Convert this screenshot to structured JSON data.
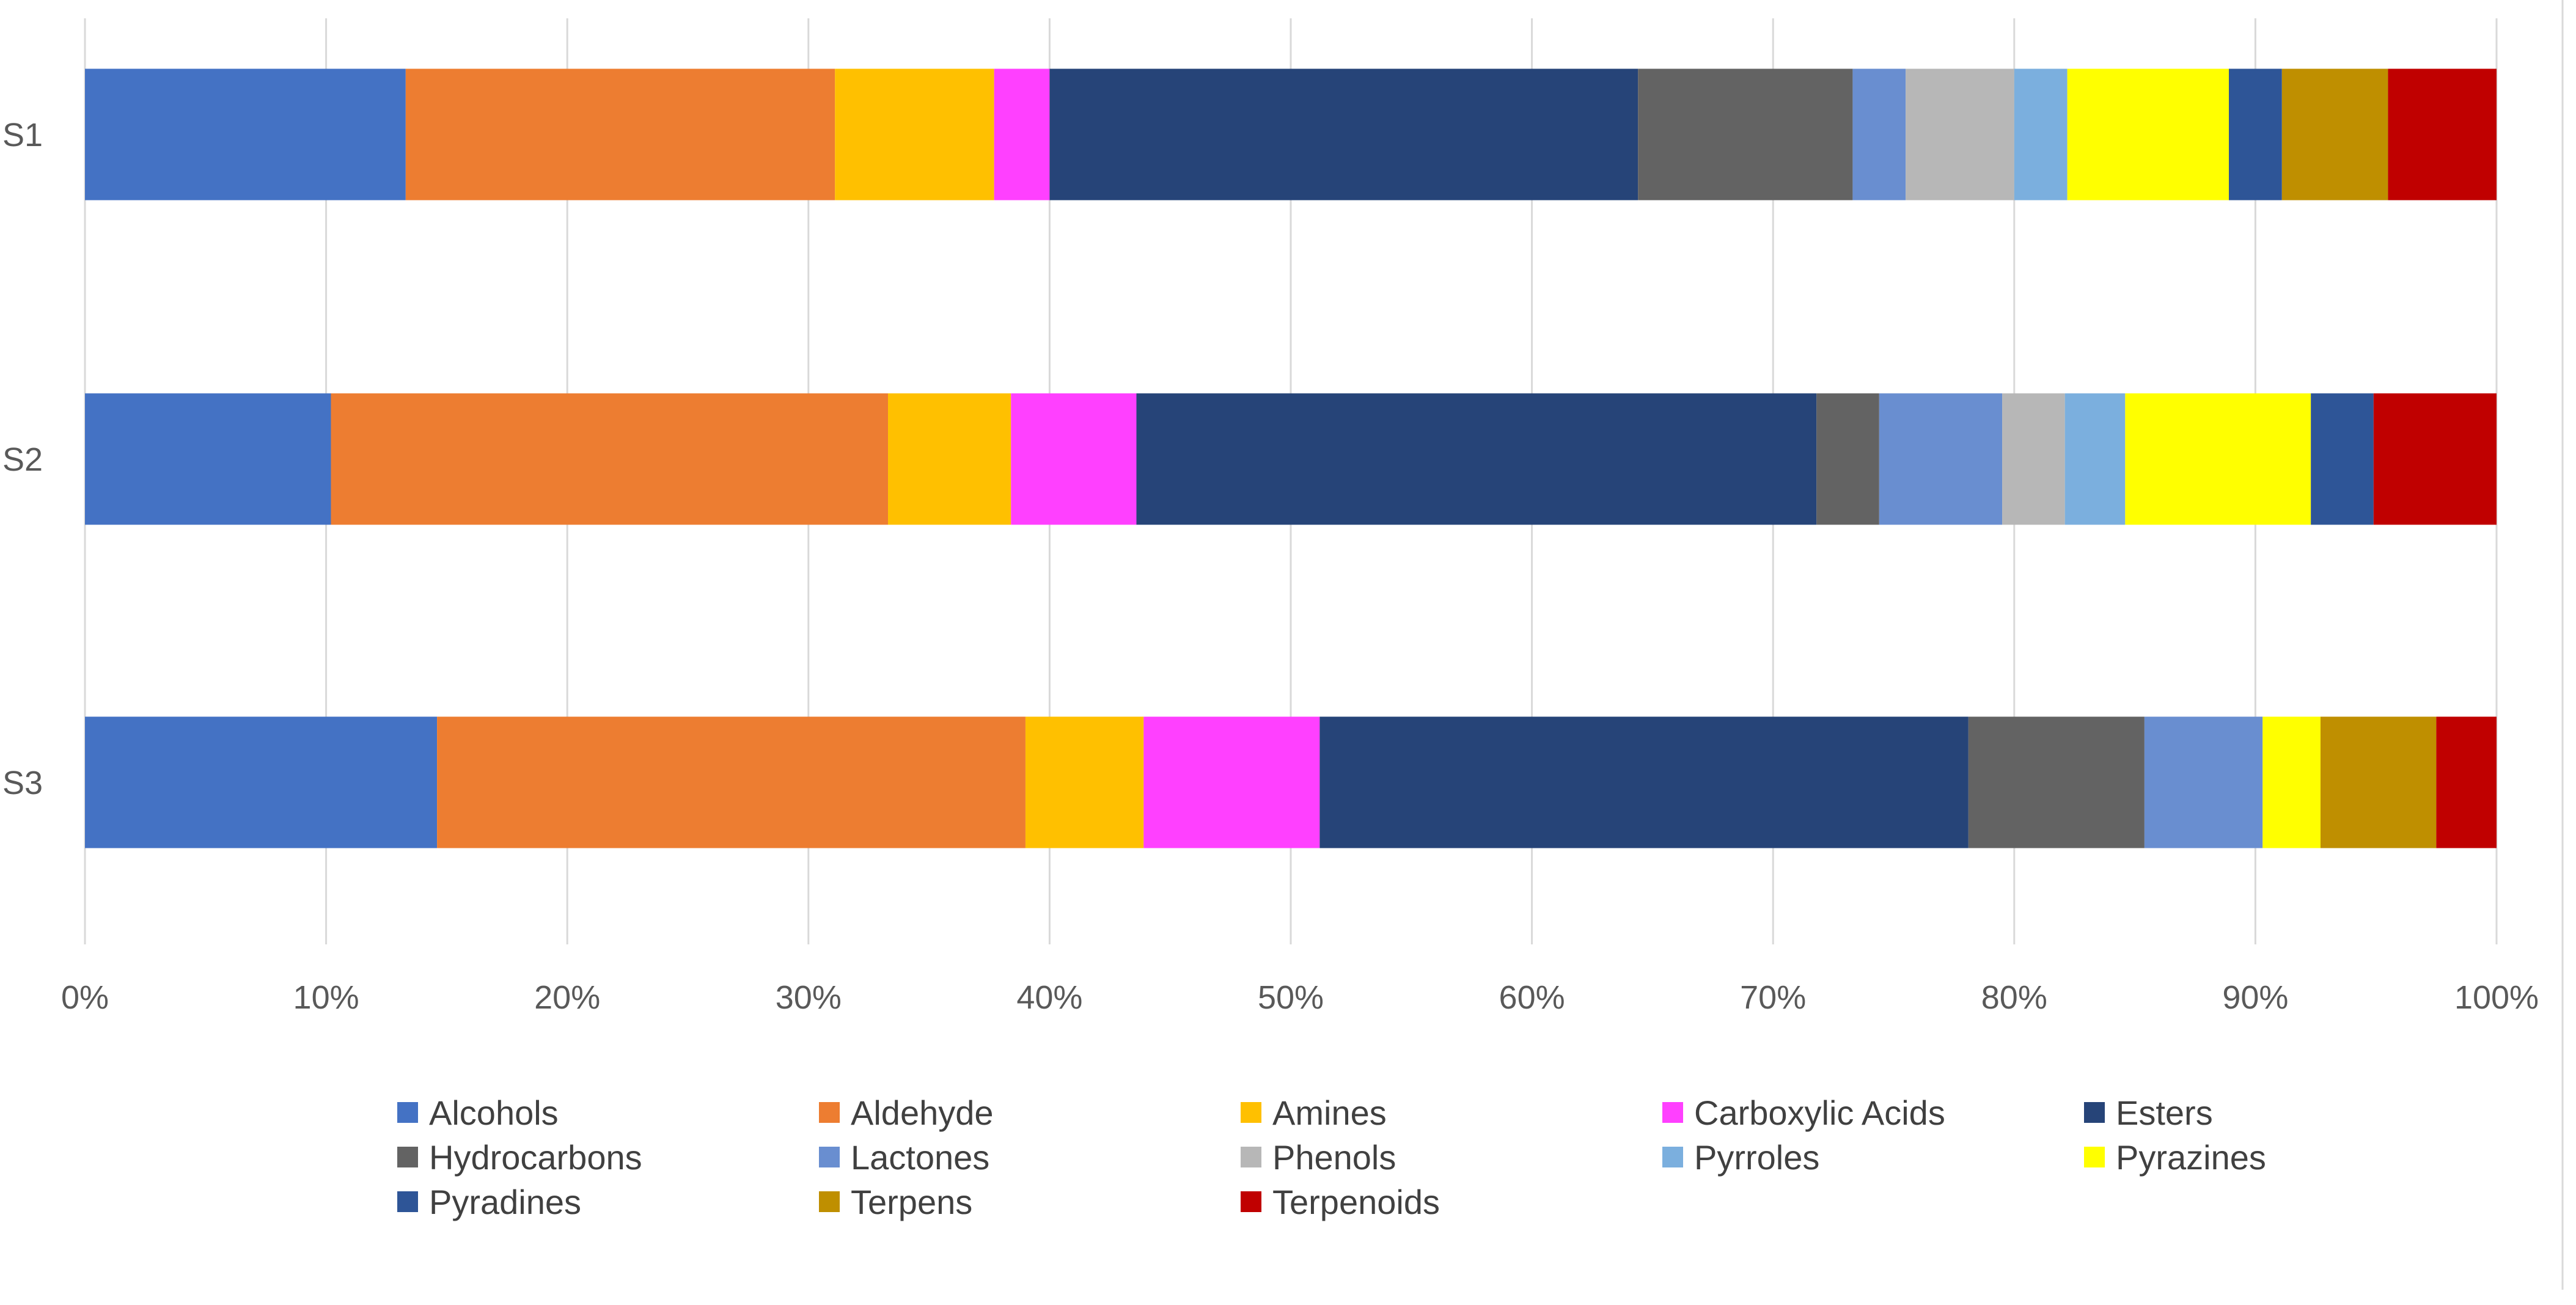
{
  "chart_data": {
    "type": "bar",
    "orientation": "horizontal",
    "stacked": "percent",
    "title": "",
    "xlabel": "",
    "ylabel": "",
    "xlim": [
      0,
      100
    ],
    "x_ticks": [
      "0%",
      "10%",
      "20%",
      "30%",
      "40%",
      "50%",
      "60%",
      "70%",
      "80%",
      "90%",
      "100%"
    ],
    "categories": [
      "S1",
      "S2",
      "S3"
    ],
    "grid": "vertical",
    "legend_position": "bottom",
    "series": [
      {
        "name": "Alcohols",
        "color": "#4472C4",
        "values": [
          13.3,
          10.2,
          14.6
        ]
      },
      {
        "name": "Aldehyde",
        "color": "#ED7D31",
        "values": [
          17.8,
          23.1,
          24.4
        ]
      },
      {
        "name": "Amines",
        "color": "#FFC000",
        "values": [
          6.6,
          5.1,
          4.9
        ]
      },
      {
        "name": "Carboxylic Acids",
        "color": "#FF40FF",
        "values": [
          2.3,
          5.2,
          7.3
        ]
      },
      {
        "name": "Esters",
        "color": "#264478",
        "values": [
          24.4,
          28.2,
          26.9
        ]
      },
      {
        "name": "Hydrocarbons",
        "color": "#636363",
        "values": [
          8.9,
          2.6,
          7.3
        ]
      },
      {
        "name": "Lactones",
        "color": "#698ED0",
        "values": [
          2.2,
          5.1,
          4.9
        ]
      },
      {
        "name": "Phenols",
        "color": "#B7B7B7",
        "values": [
          4.5,
          2.6,
          0
        ]
      },
      {
        "name": "Pyrroles",
        "color": "#7BAFDE",
        "values": [
          2.2,
          2.5,
          0
        ]
      },
      {
        "name": "Pyrazines",
        "color": "#FFFF00",
        "values": [
          6.7,
          7.7,
          2.4
        ]
      },
      {
        "name": "Pyradines",
        "color": "#2E5597",
        "values": [
          2.2,
          2.6,
          0
        ]
      },
      {
        "name": "Terpens",
        "color": "#BF8F00",
        "values": [
          4.4,
          0,
          4.8
        ]
      },
      {
        "name": "Terpenoids",
        "color": "#C00000",
        "values": [
          4.5,
          5.1,
          2.5
        ]
      }
    ]
  }
}
